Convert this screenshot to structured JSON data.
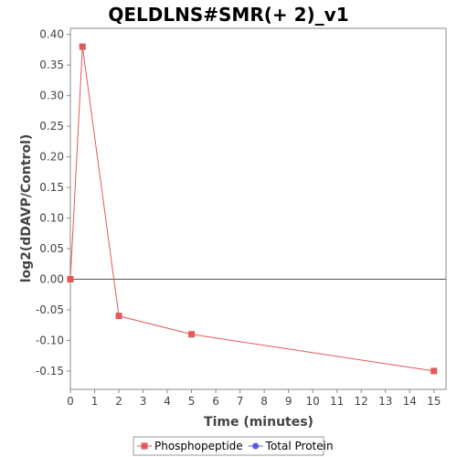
{
  "chart_data": {
    "type": "line",
    "title": "QELDLNS#SMR(+ 2)_v1",
    "xlabel": "Time (minutes)",
    "ylabel": "log2(dDAVP/Control)",
    "xlim": [
      0,
      15.5
    ],
    "ylim": [
      -0.18,
      0.41
    ],
    "xticks": [
      "0",
      "1",
      "2",
      "3",
      "4",
      "5",
      "6",
      "7",
      "8",
      "9",
      "10",
      "11",
      "12",
      "13",
      "14",
      "15"
    ],
    "yticks": [
      "0.40",
      "0.35",
      "0.30",
      "0.25",
      "0.20",
      "0.15",
      "0.10",
      "0.05",
      "0.00",
      "-0.05",
      "-0.10",
      "-0.15"
    ],
    "grid": false,
    "zero_line": true,
    "legend_position": "bottom",
    "series": [
      {
        "name": "Phosphopeptide",
        "color": "#e05a5a",
        "marker": "square",
        "x": [
          0,
          0.5,
          2,
          5,
          15
        ],
        "y": [
          0.0,
          0.38,
          -0.06,
          -0.09,
          -0.15
        ]
      },
      {
        "name": "Total Protein",
        "color": "#5a5ae0",
        "marker": "circle",
        "x": [],
        "y": []
      }
    ]
  }
}
